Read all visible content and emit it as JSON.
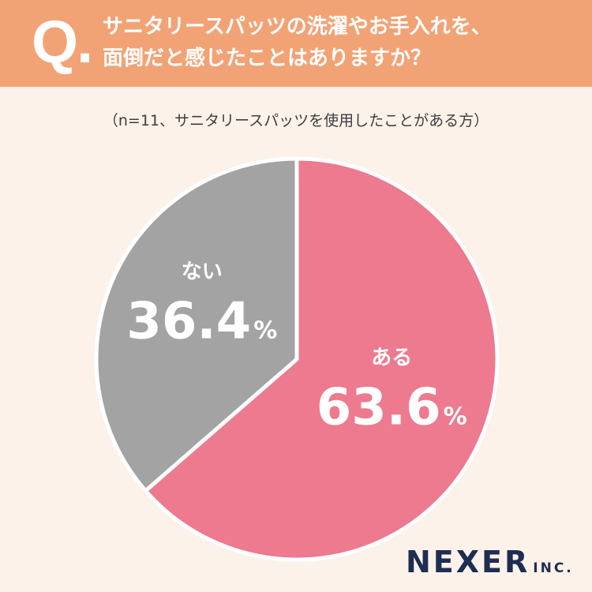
{
  "header": {
    "q_mark": "Q.",
    "question_line1": "サニタリースパッツの洗濯やお手入れを、",
    "question_line2": "面倒だと感じたことはありますか？"
  },
  "note": "（n=11、サニタリースパッツを使用したことがある方）",
  "chart_data": {
    "type": "pie",
    "categories": [
      "ある",
      "ない"
    ],
    "values": [
      63.6,
      36.4
    ],
    "value_labels": [
      "63.6",
      "36.4"
    ],
    "unit": "%",
    "colors": [
      "#ed7a8e",
      "#a3a3a3"
    ],
    "start": "12 o'clock, clockwise"
  },
  "brand": {
    "name": "NEXER",
    "suffix": "INC."
  }
}
